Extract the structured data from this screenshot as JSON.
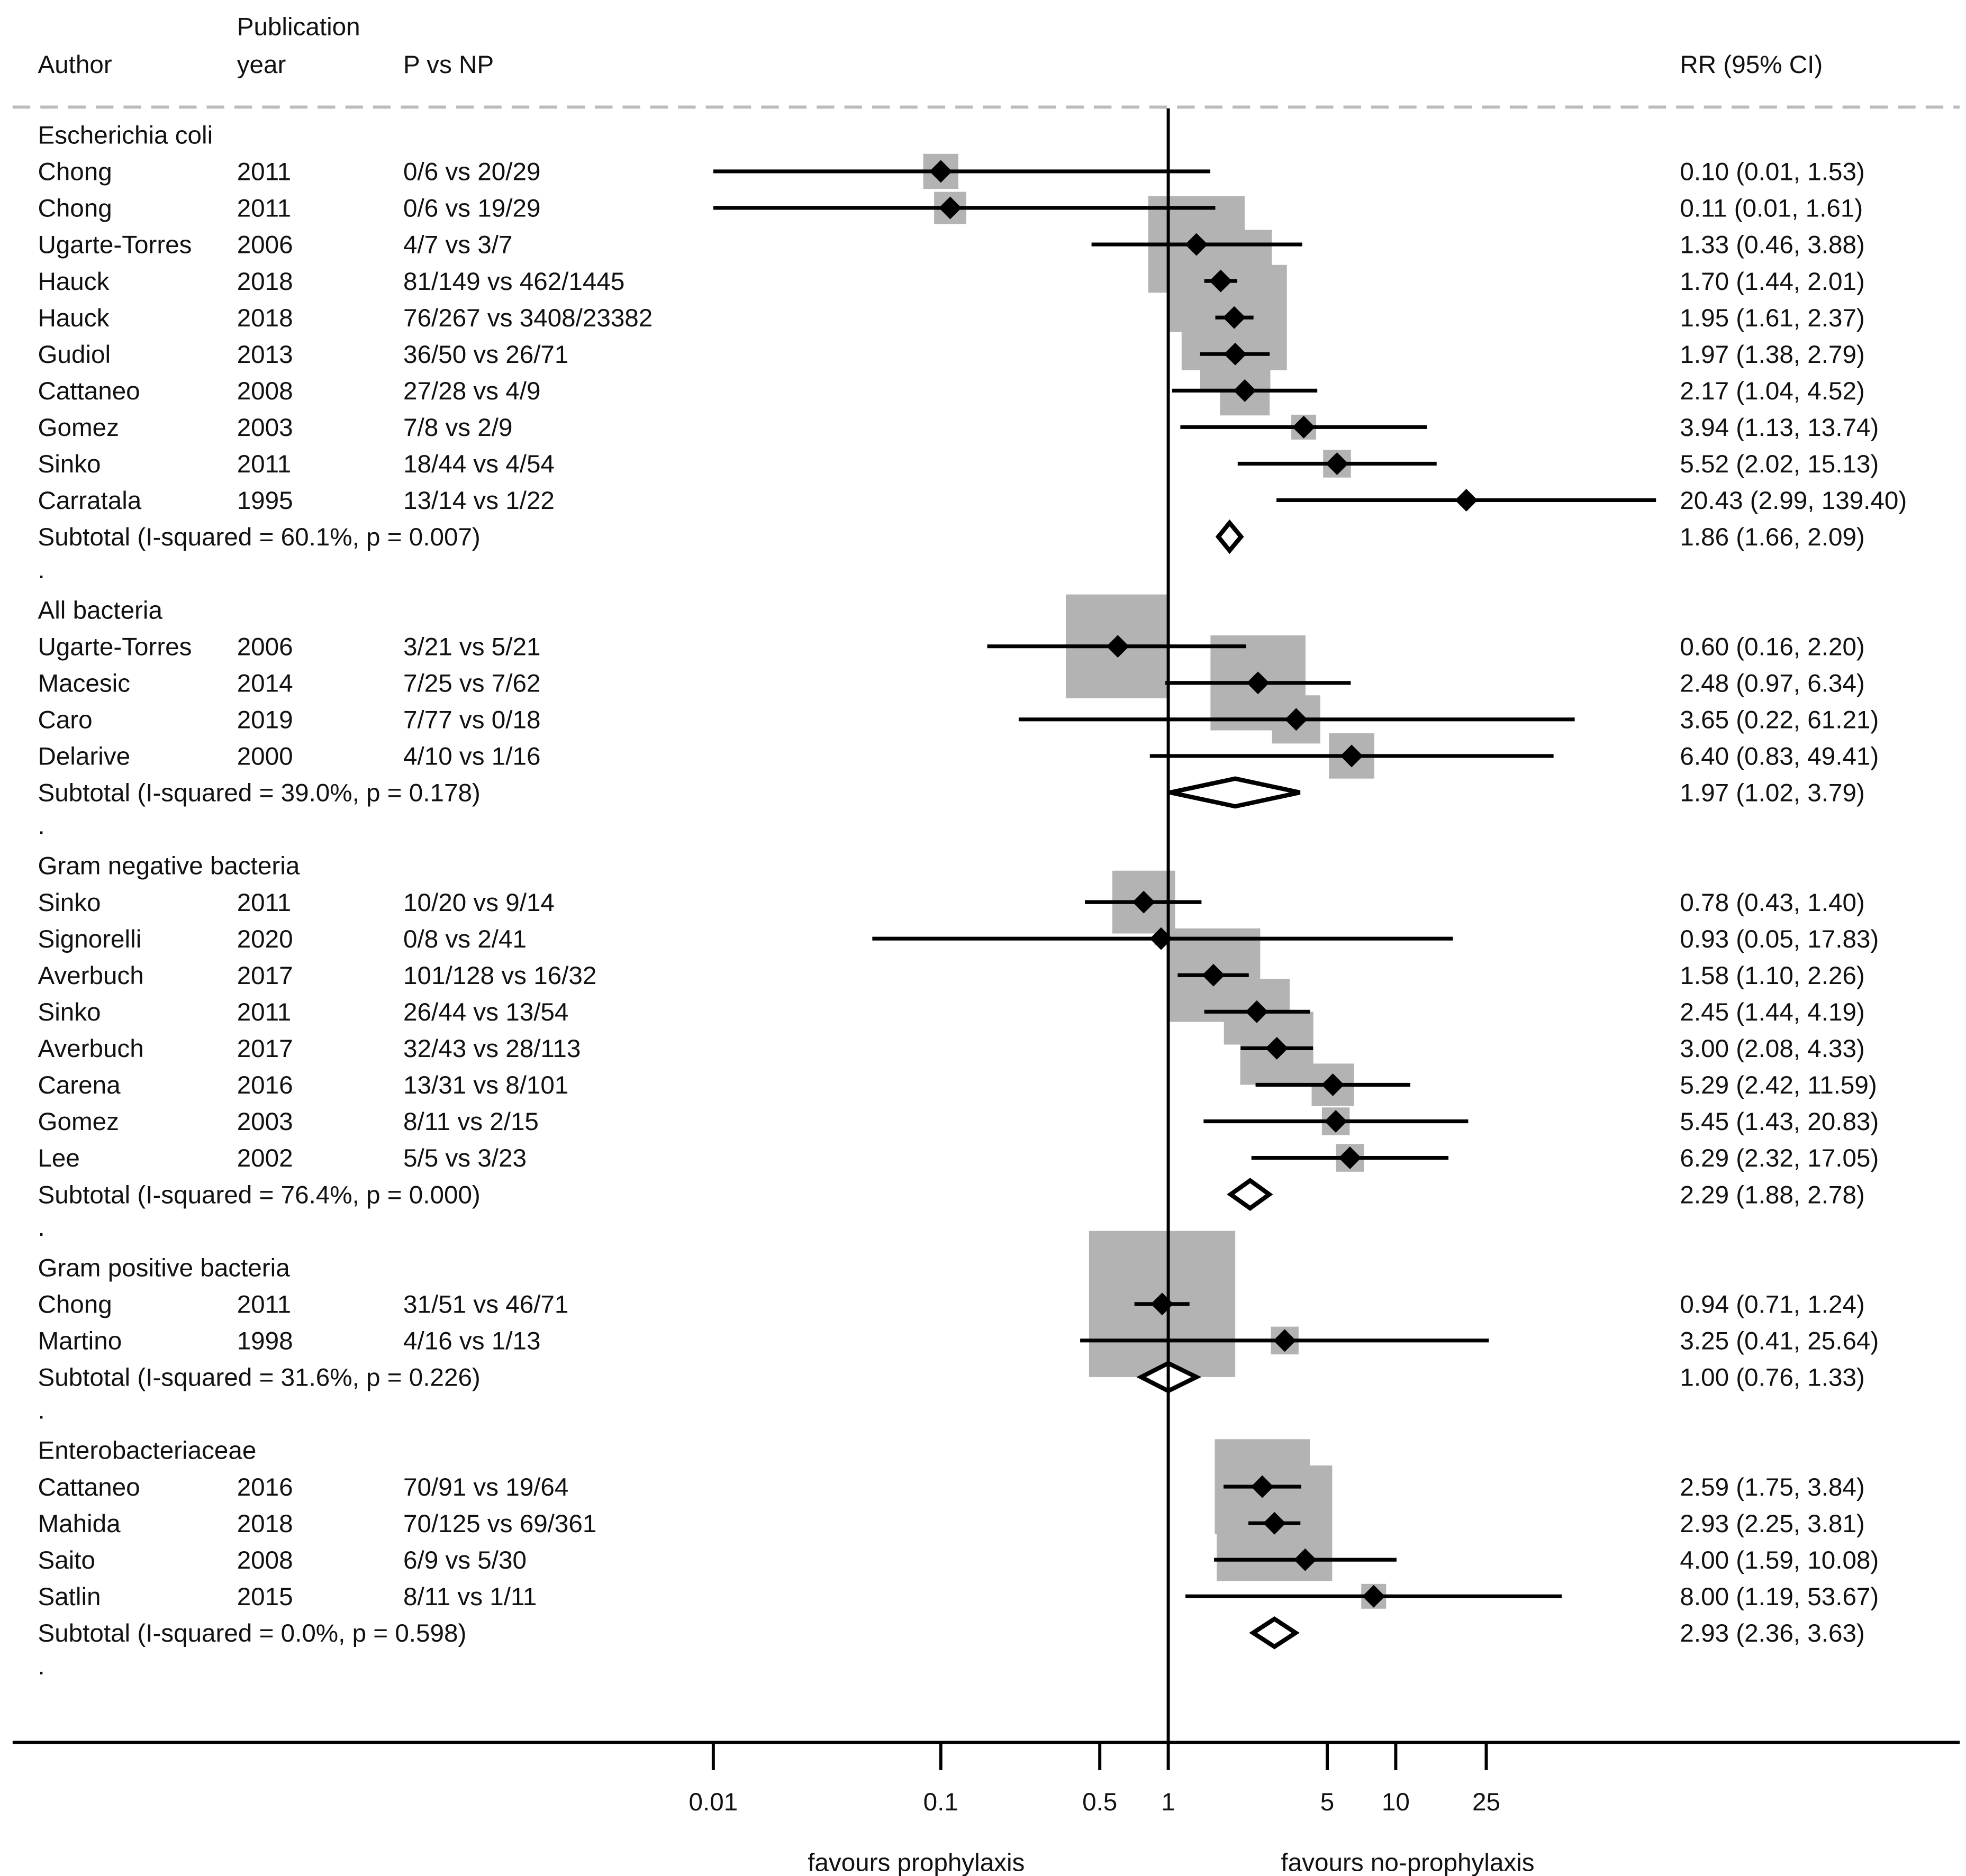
{
  "chart_data": {
    "type": "forest",
    "scale": "log",
    "null_value": 1,
    "headers": {
      "author": "Author",
      "pub_year_line1": "Publication",
      "pub_year_line2": "year",
      "pvnp": "P vs NP",
      "rr": "RR (95% CI)"
    },
    "x_ticks": [
      0.01,
      0.1,
      0.5,
      1,
      5,
      10,
      25
    ],
    "x_tick_labels": [
      "0.01",
      "0.1",
      "0.5",
      "1",
      "5",
      "10",
      "25"
    ],
    "favours_left": "favours prophylaxis",
    "favours_right": "favours no-prophylaxis",
    "groups": [
      {
        "name": "Escherichia coli",
        "studies": [
          {
            "author": "Chong",
            "year": "2011",
            "pvnp": "0/6 vs 20/29",
            "rr": 0.1,
            "lo": 0.01,
            "hi": 1.53,
            "label": "0.10 (0.01, 1.53)",
            "weight": 24
          },
          {
            "author": "Chong",
            "year": "2011",
            "pvnp": "0/6 vs 19/29",
            "rr": 0.11,
            "lo": 0.01,
            "hi": 1.61,
            "label": "0.11 (0.01, 1.61)",
            "weight": 22
          },
          {
            "author": "Ugarte-Torres",
            "year": "2006",
            "pvnp": "4/7 vs 3/7",
            "rr": 1.33,
            "lo": 0.46,
            "hi": 3.88,
            "label": "1.33 (0.46, 3.88)",
            "weight": 66
          },
          {
            "author": "Hauck",
            "year": "2018",
            "pvnp": "81/149 vs 462/1445",
            "rr": 1.7,
            "lo": 1.44,
            "hi": 2.01,
            "label": "1.70 (1.44, 2.01)",
            "weight": 70
          },
          {
            "author": "Hauck",
            "year": "2018",
            "pvnp": "76/267 vs 3408/23382",
            "rr": 1.95,
            "lo": 1.61,
            "hi": 2.37,
            "label": "1.95 (1.61, 2.37)",
            "weight": 72
          },
          {
            "author": "Gudiol",
            "year": "2013",
            "pvnp": "36/50 vs 26/71",
            "rr": 1.97,
            "lo": 1.38,
            "hi": 2.79,
            "label": "1.97 (1.38, 2.79)",
            "weight": 48
          },
          {
            "author": "Cattaneo",
            "year": "2008",
            "pvnp": "27/28 vs 4/9",
            "rr": 2.17,
            "lo": 1.04,
            "hi": 4.52,
            "label": "2.17 (1.04, 4.52)",
            "weight": 34
          },
          {
            "author": "Gomez",
            "year": "2003",
            "pvnp": "7/8 vs 2/9",
            "rr": 3.94,
            "lo": 1.13,
            "hi": 13.74,
            "label": "3.94 (1.13, 13.74)",
            "weight": 17
          },
          {
            "author": "Sinko",
            "year": "2011",
            "pvnp": "18/44 vs 4/54",
            "rr": 5.52,
            "lo": 2.02,
            "hi": 15.13,
            "label": "5.52 (2.02, 15.13)",
            "weight": 19
          },
          {
            "author": "Carratala",
            "year": "1995",
            "pvnp": "13/14 vs 1/22",
            "rr": 20.43,
            "lo": 2.99,
            "hi": 139.4,
            "label": "20.43 (2.99, 139.40)",
            "weight": 8
          }
        ],
        "subtotal": {
          "text": "Subtotal  (I-squared = 60.1%, p = 0.007)",
          "rr": 1.86,
          "lo": 1.66,
          "hi": 2.09,
          "label": "1.86 (1.66, 2.09)"
        }
      },
      {
        "name": "All bacteria",
        "studies": [
          {
            "author": "Ugarte-Torres",
            "year": "2006",
            "pvnp": "3/21 vs 5/21",
            "rr": 0.6,
            "lo": 0.16,
            "hi": 2.2,
            "label": "0.60 (0.16, 2.20)",
            "weight": 71
          },
          {
            "author": "Macesic",
            "year": "2014",
            "pvnp": "7/25 vs 7/62",
            "rr": 2.48,
            "lo": 0.97,
            "hi": 6.34,
            "label": "2.48 (0.97, 6.34)",
            "weight": 65
          },
          {
            "author": "Caro",
            "year": "2019",
            "pvnp": "7/77 vs 0/18",
            "rr": 3.65,
            "lo": 0.22,
            "hi": 61.21,
            "label": "3.65 (0.22, 61.21)",
            "weight": 33
          },
          {
            "author": "Delarive",
            "year": "2000",
            "pvnp": "4/10 vs 1/16",
            "rr": 6.4,
            "lo": 0.83,
            "hi": 49.41,
            "label": "6.40 (0.83, 49.41)",
            "weight": 31
          }
        ],
        "subtotal": {
          "text": "Subtotal  (I-squared = 39.0%, p = 0.178)",
          "rr": 1.97,
          "lo": 1.02,
          "hi": 3.79,
          "label": "1.97 (1.02, 3.79)"
        }
      },
      {
        "name": "Gram negative bacteria",
        "studies": [
          {
            "author": "Sinko",
            "year": "2011",
            "pvnp": "10/20 vs 9/14",
            "rr": 0.78,
            "lo": 0.43,
            "hi": 1.4,
            "label": "0.78 (0.43, 1.40)",
            "weight": 43
          },
          {
            "author": "Signorelli",
            "year": "2020",
            "pvnp": "0/8 vs 2/41",
            "rr": 0.93,
            "lo": 0.05,
            "hi": 17.83,
            "label": "0.93 (0.05, 17.83)",
            "weight": 9
          },
          {
            "author": "Averbuch",
            "year": "2017",
            "pvnp": "101/128 vs 16/32",
            "rr": 1.58,
            "lo": 1.1,
            "hi": 2.26,
            "label": "1.58 (1.10, 2.26)",
            "weight": 64
          },
          {
            "author": "Sinko",
            "year": "2011",
            "pvnp": "26/44 vs 13/54",
            "rr": 2.45,
            "lo": 1.44,
            "hi": 4.19,
            "label": "2.45 (1.44, 4.19)",
            "weight": 45
          },
          {
            "author": "Averbuch",
            "year": "2017",
            "pvnp": "32/43 vs 28/113",
            "rr": 3.0,
            "lo": 2.08,
            "hi": 4.33,
            "label": "3.00 (2.08, 4.33)",
            "weight": 50
          },
          {
            "author": "Carena",
            "year": "2016",
            "pvnp": "13/31 vs 8/101",
            "rr": 5.29,
            "lo": 2.42,
            "hi": 11.59,
            "label": "5.29 (2.42, 11.59)",
            "weight": 29
          },
          {
            "author": "Gomez",
            "year": "2003",
            "pvnp": "8/11 vs 2/15",
            "rr": 5.45,
            "lo": 1.43,
            "hi": 20.83,
            "label": "5.45 (1.43, 20.83)",
            "weight": 19
          },
          {
            "author": "Lee",
            "year": "2002",
            "pvnp": "5/5 vs 3/23",
            "rr": 6.29,
            "lo": 2.32,
            "hi": 17.05,
            "label": "6.29 (2.32, 17.05)",
            "weight": 19
          }
        ],
        "subtotal": {
          "text": "Subtotal  (I-squared = 76.4%, p = 0.000)",
          "rr": 2.29,
          "lo": 1.88,
          "hi": 2.78,
          "label": "2.29 (1.88, 2.78)"
        }
      },
      {
        "name": "Gram positive bacteria",
        "studies": [
          {
            "author": "Chong",
            "year": "2011",
            "pvnp": "31/51 vs 46/71",
            "rr": 0.94,
            "lo": 0.71,
            "hi": 1.24,
            "label": "0.94 (0.71, 1.24)",
            "weight": 100
          },
          {
            "author": "Martino",
            "year": "1998",
            "pvnp": "4/16 vs 1/13",
            "rr": 3.25,
            "lo": 0.41,
            "hi": 25.64,
            "label": "3.25 (0.41, 25.64)",
            "weight": 19
          }
        ],
        "subtotal": {
          "text": "Subtotal  (I-squared = 31.6%, p = 0.226)",
          "rr": 1.0,
          "lo": 0.76,
          "hi": 1.33,
          "label": "1.00 (0.76, 1.33)"
        }
      },
      {
        "name": "Enterobacteriaceae",
        "studies": [
          {
            "author": "Cattaneo",
            "year": "2016",
            "pvnp": "70/91 vs 19/64",
            "rr": 2.59,
            "lo": 1.75,
            "hi": 3.84,
            "label": "2.59 (1.75, 3.84)",
            "weight": 65
          },
          {
            "author": "Mahida",
            "year": "2018",
            "pvnp": "70/125 vs 69/361",
            "rr": 2.93,
            "lo": 2.25,
            "hi": 3.81,
            "label": "2.93 (2.25, 3.81)",
            "weight": 79
          },
          {
            "author": "Saito",
            "year": "2008",
            "pvnp": "6/9 vs 5/30",
            "rr": 4.0,
            "lo": 1.59,
            "hi": 10.08,
            "label": "4.00 (1.59, 10.08)",
            "weight": 26
          },
          {
            "author": "Satlin",
            "year": "2015",
            "pvnp": "8/11 vs 1/11",
            "rr": 8.0,
            "lo": 1.19,
            "hi": 53.67,
            "label": "8.00 (1.19, 53.67)",
            "weight": 17
          }
        ],
        "subtotal": {
          "text": "Subtotal  (I-squared = 0.0%, p = 0.598)",
          "rr": 2.93,
          "lo": 2.36,
          "hi": 3.63,
          "label": "2.93 (2.36, 3.63)"
        }
      }
    ],
    "spacer_mark": "."
  }
}
